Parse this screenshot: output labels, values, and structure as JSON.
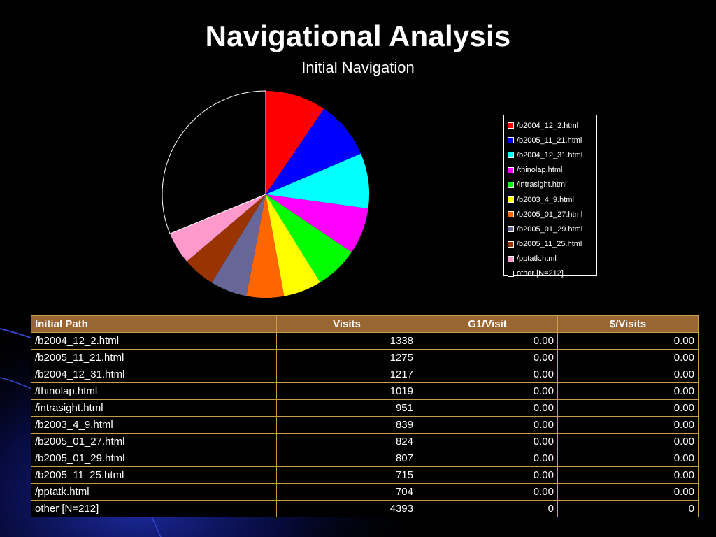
{
  "slide": {
    "title": "Navigational Analysis",
    "subtitle": "Initial Navigation"
  },
  "colors": {
    "background": "#000000",
    "table_header": "#996633",
    "table_border": "#c89b4e",
    "deco_blue": "#1e2ea8"
  },
  "chart_data": {
    "type": "pie",
    "title": "",
    "start_angle_deg": 0,
    "direction": "clockwise",
    "categories": [
      "/b2004_12_2.html",
      "/b2005_11_21.html",
      "/b2004_12_31.html",
      "/thinolap.html",
      "/intrasight.html",
      "/b2003_4_9.html",
      "/b2005_01_27.html",
      "/b2005_01_29.html",
      "/b2005_11_25.html",
      "/pptatk.html",
      "other [N=212]"
    ],
    "values": [
      1338,
      1275,
      1217,
      1019,
      951,
      839,
      824,
      807,
      715,
      704,
      4393
    ],
    "colors": [
      "#ff0000",
      "#0000ff",
      "#00ffff",
      "#ff00ff",
      "#00ff00",
      "#ffff00",
      "#ff6600",
      "#666699",
      "#993300",
      "#ff99cc",
      "#000000"
    ],
    "legend_placement": "right"
  },
  "table": {
    "headers": [
      "Initial Path",
      "Visits",
      "G1/Visit",
      "$/Visits"
    ],
    "rows": [
      [
        "/b2004_12_2.html",
        "1338",
        "0.00",
        "0.00"
      ],
      [
        "/b2005_11_21.html",
        "1275",
        "0.00",
        "0.00"
      ],
      [
        "/b2004_12_31.html",
        "1217",
        "0.00",
        "0.00"
      ],
      [
        "/thinolap.html",
        "1019",
        "0.00",
        "0.00"
      ],
      [
        "/intrasight.html",
        "951",
        "0.00",
        "0.00"
      ],
      [
        "/b2003_4_9.html",
        "839",
        "0.00",
        "0.00"
      ],
      [
        "/b2005_01_27.html",
        "824",
        "0.00",
        "0.00"
      ],
      [
        "/b2005_01_29.html",
        "807",
        "0.00",
        "0.00"
      ],
      [
        "/b2005_11_25.html",
        "715",
        "0.00",
        "0.00"
      ],
      [
        "/pptatk.html",
        "704",
        "0.00",
        "0.00"
      ],
      [
        "other [N=212]",
        "4393",
        "0",
        "0"
      ]
    ]
  }
}
